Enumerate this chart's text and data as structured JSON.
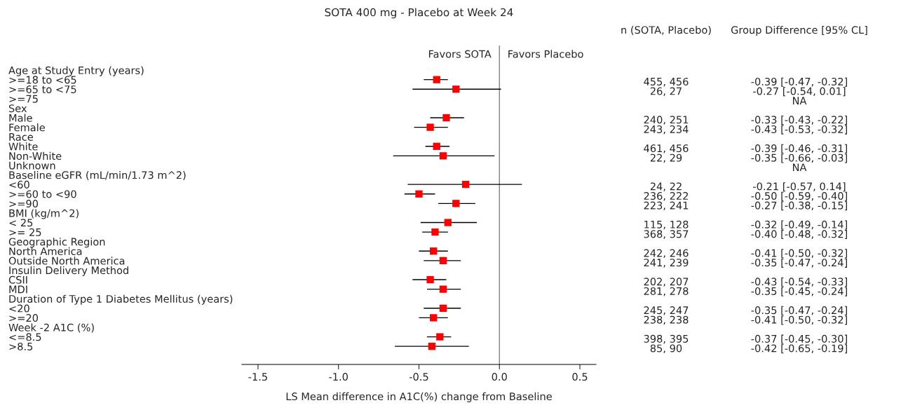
{
  "chart_data": {
    "type": "scatter",
    "title": "SOTA 400 mg - Placebo at Week 24",
    "xlabel": "LS Mean difference in A1C(%) change from Baseline",
    "categories": [
      "Age at Study Entry (years)",
      ">=18 to <65",
      ">=65 to <75",
      ">=75",
      "Sex",
      "Male",
      "Female",
      "Race",
      "White",
      "Non-White",
      "Unknown",
      "Baseline eGFR (mL/min/1.73 m^2)",
      "<60",
      ">=60 to <90",
      ">=90",
      "BMI (kg/m^2)",
      "< 25",
      ">= 25",
      "Geographic Region",
      "North America",
      "Outside North America",
      "Insulin Delivery Method",
      "CSII",
      "MDI",
      "Duration of Type 1 Diabetes Mellitus (years)",
      "<20",
      ">=20",
      "Week -2 A1C (%)",
      "<=8.5",
      ">8.5"
    ],
    "series": [
      {
        "color": "#ff0000",
        "values": [
          null,
          -0.39,
          -0.27,
          null,
          null,
          -0.33,
          -0.43,
          null,
          -0.39,
          -0.35,
          null,
          null,
          -0.21,
          -0.5,
          -0.27,
          null,
          -0.32,
          -0.4,
          null,
          -0.41,
          -0.35,
          null,
          -0.43,
          -0.35,
          null,
          -0.35,
          -0.41,
          null,
          -0.37,
          -0.42
        ],
        "errors": [
          null,
          [
            -0.47,
            -0.32
          ],
          [
            -0.54,
            0.01
          ],
          null,
          null,
          [
            -0.43,
            -0.22
          ],
          [
            -0.53,
            -0.32
          ],
          null,
          [
            -0.46,
            -0.31
          ],
          [
            -0.66,
            -0.03
          ],
          null,
          null,
          [
            -0.57,
            0.14
          ],
          [
            -0.59,
            -0.4
          ],
          [
            -0.38,
            -0.15
          ],
          null,
          [
            -0.49,
            -0.14
          ],
          [
            -0.48,
            -0.32
          ],
          null,
          [
            -0.5,
            -0.32
          ],
          [
            -0.47,
            -0.24
          ],
          null,
          [
            -0.54,
            -0.33
          ],
          [
            -0.45,
            -0.24
          ],
          null,
          [
            -0.47,
            -0.24
          ],
          [
            -0.5,
            -0.32
          ],
          null,
          [
            -0.45,
            -0.3
          ],
          [
            -0.65,
            -0.19
          ]
        ],
        "value_labels": [
          null,
          "-0.39 [-0.47, -0.32]",
          "-0.27 [-0.54, 0.01]",
          "NA",
          null,
          "-0.33 [-0.43, -0.22]",
          "-0.43 [-0.53, -0.32]",
          null,
          "-0.39 [-0.46, -0.31]",
          "-0.35 [-0.66, -0.03]",
          "NA",
          null,
          "-0.21 [-0.57, 0.14]",
          "-0.50 [-0.59, -0.40]",
          "-0.27 [-0.38, -0.15]",
          null,
          "-0.32 [-0.49, -0.14]",
          "-0.40 [-0.48, -0.32]",
          null,
          "-0.41 [-0.50, -0.32]",
          "-0.35 [-0.47, -0.24]",
          null,
          "-0.43 [-0.54, -0.33]",
          "-0.35 [-0.45, -0.24]",
          null,
          "-0.35 [-0.47, -0.24]",
          "-0.41 [-0.50, -0.32]",
          null,
          "-0.37 [-0.45, -0.30]",
          "-0.42 [-0.65, -0.19]"
        ]
      }
    ],
    "xlim": [
      -1.6,
      0.6
    ],
    "xticks": [
      {
        "value": -1.5,
        "label": "-1.5"
      },
      {
        "value": -1.0,
        "label": "-1.0"
      },
      {
        "value": -0.5,
        "label": "-0.5"
      },
      {
        "value": 0.0,
        "label": "0.0"
      },
      {
        "value": 0.5,
        "label": "0.5"
      }
    ],
    "ref_lines": [
      {
        "axis": "x",
        "value": 0,
        "color": "#808080"
      }
    ],
    "orientation": "horizontal",
    "marker": "square",
    "grid": false,
    "legend": false,
    "annotations": [
      "Favors SOTA",
      "Favors Placebo",
      "n (SOTA, Placebo)",
      "Group Difference [95% CL]",
      "455, 456",
      "26, 27",
      "240, 251",
      "243, 234",
      "461, 456",
      "22, 29",
      "24, 22",
      "236, 222",
      "223, 241",
      "115, 128",
      "368, 357",
      "242, 246",
      "241, 239",
      "202, 207",
      "281, 278",
      "245, 247",
      "238, 238",
      "398, 395",
      "85, 90"
    ]
  }
}
